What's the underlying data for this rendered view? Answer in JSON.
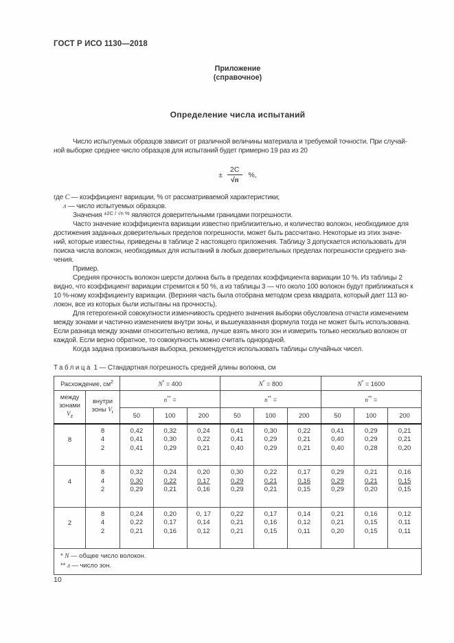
{
  "header": {
    "doc_number": "ГОСТ Р ИСО 1130—2018",
    "appendix": "Приложение",
    "appendix_kind": "(справочное)",
    "section_title": "Определение числа испытаний"
  },
  "body": {
    "p1": "Число испытуемых образцов зависит от различной величины материала и требуемой точности. При случай-\nной выборке среднее число образцов для испытаний будет примерно 19 раз из 20",
    "where_c": {
      "pre": "где ",
      "var": "С",
      "post": " — коэффициент вариации, % от рассматриваемой характеристики;"
    },
    "where_n": {
      "var": "л",
      "post": " — число испытуемых образцов."
    },
    "values_line": {
      "pre": "Значения ",
      "formula": "±2C / √n %",
      "post": " являются доверительными границами погрешности."
    },
    "p_often": "Часто значение коэффициента вариации известно приблизительно, и количество волокон, необходимое для\nдостижения заданных доверительных пределов погрешности, может быть рассчитано. Некоторые из этих значе-\nний, которые известны, приведены в таблице 2 настоящего приложения. Таблицу 3 допускается использовать для\nпоиска числа волокон, необходимых для испытаний в любых доверительных пределах погрешности среднего зна-\nчения.",
    "p_example_label": "Пример.",
    "p_example": "Средняя прочность волокон шерсти должна быть в пределах коэффициента вариации 10 %. Из таблицы 2\nвидно, что коэффициент вариации стремится к 50 %, а из таблицы 3 — что около 100 волокон будут приближаться к\n10 %-ному коэффициенту вариации. (Верхняя часть была отобрана методом среза квадрата, который дает 113 во-\nлокон, все из которых были испытаны на прочность).",
    "p_hetero": "Для гетерогенной совокупности изменчивость среднего значения выборки обусловлена отчасти изменением\nмежду зонами и частично изменением внутри зоны, и вышеуказанная формула тогда не может быть использована.\nЕсли разница между зонами относительно велика, лучше взять много зон и измерить только несколько волокон от\nкаждой. Если верно обратное, то совокупность можно считать однородной.",
    "p_random": "Когда задана произвольная выборка, рекомендуется использовать таблицы случайных чисел."
  },
  "formula": {
    "sign": "±",
    "num": "2C",
    "radical": "√",
    "den": "n",
    "suffix": "%,"
  },
  "table": {
    "caption": {
      "word": "Таблица",
      "rest": " 1 — Стандартная погрешность средней длины волокна, см"
    },
    "col_disp": {
      "text": "Расхождение, см",
      "sup": "2"
    },
    "between": {
      "l1": "между",
      "l2": "зонами",
      "var": "V",
      "sub": "z"
    },
    "within": {
      "l1": "внутри",
      "l2": "зоны ",
      "var": "V",
      "sub": "r"
    },
    "n_groups": [
      {
        "base": "N",
        "sup": "*",
        "rest": "= 400"
      },
      {
        "base": "N",
        "sup": "*",
        "rest": "= 800"
      },
      {
        "base": "N",
        "sup": "*",
        "rest": "= 1600"
      }
    ],
    "sub_head": {
      "base": "n",
      "sup": "**",
      "rest": "="
    },
    "n_values": [
      "50",
      "100",
      "200"
    ],
    "blocks": [
      {
        "vz": "8",
        "vr": [
          "8",
          "4",
          "2"
        ],
        "underline_row": -1,
        "rows": [
          [
            "0,42",
            "0,32",
            "0,24",
            "0,41",
            "0,30",
            "0,22",
            "0,41",
            "0,29",
            "0,21"
          ],
          [
            "0,41",
            "0,30",
            "0,22",
            "0,41",
            "0,29",
            "0,21",
            "0,40",
            "0,29",
            "0,21"
          ],
          [
            "0,41",
            "0,29",
            "0,21",
            "0,40",
            "0,29",
            "0,21",
            "0,40",
            "0,28",
            "0,20"
          ]
        ]
      },
      {
        "vz": "4",
        "vr": [
          "8",
          "4",
          "2"
        ],
        "underline_row": 1,
        "rows": [
          [
            "0,32",
            "0,24",
            "0,20",
            "0,30",
            "0,22",
            "0,17",
            "0,29",
            "0,21",
            "0,16"
          ],
          [
            "0,30",
            "0,22",
            "0,17",
            "0,29",
            "0,21",
            "0,16",
            "0,29",
            "0,21",
            "0,15"
          ],
          [
            "0,29",
            "0,21",
            "0,16",
            "0,29",
            "0,21",
            "0,15",
            "0,29",
            "0,20",
            "0,15"
          ]
        ]
      },
      {
        "vz": "2",
        "vr": [
          "8",
          "4",
          "2"
        ],
        "underline_row": -1,
        "rows": [
          [
            "0,24",
            "0,20",
            "0, 17",
            "0,22",
            "0,17",
            "0,14",
            "0,21",
            "0,16",
            "0,12"
          ],
          [
            "0,22",
            "0,17",
            "0,14",
            "0,21",
            "0,16",
            "0,12",
            "0,21",
            "0,15",
            "0,11"
          ],
          [
            "0,21",
            "0,16",
            "0,12",
            "0,21",
            "0,15",
            "0,11",
            "0,20",
            "0,15",
            "0,11"
          ]
        ]
      }
    ],
    "footnotes": [
      {
        "marker": "*",
        "var": "N",
        "text": " — общее число волокон."
      },
      {
        "marker": "**",
        "var": "л",
        "text": " — число зон."
      }
    ]
  },
  "footer": {
    "page_number": "10"
  }
}
